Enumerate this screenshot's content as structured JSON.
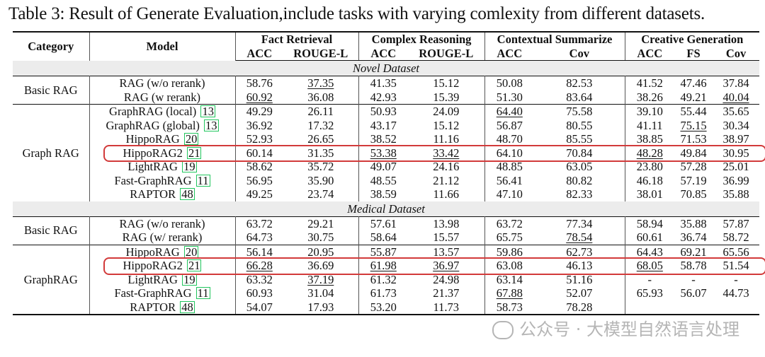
{
  "caption": "Table 3: Result of Generate Evaluation,include tasks with varying comlexity from different datasets.",
  "header": {
    "category": "Category",
    "model": "Model",
    "groups": [
      "Fact Retrieval",
      "Complex Reasoning",
      "Contextual Summarize",
      "Creative Generation"
    ],
    "metrics": [
      "ACC",
      "ROUGE-L",
      "ACC",
      "ROUGE-L",
      "ACC",
      "Cov",
      "ACC",
      "FS",
      "Cov"
    ]
  },
  "sections": [
    {
      "title": "Novel Dataset",
      "groups": [
        {
          "category": "Basic RAG",
          "rows": [
            {
              "model": "RAG (w/o rerank)",
              "cite": "",
              "values": [
                "58.76",
                "37.35",
                "41.35",
                "15.12",
                "50.08",
                "82.53",
                "41.52",
                "47.46",
                "37.84"
              ],
              "underline": [
                1
              ]
            },
            {
              "model": "RAG (w rerank)",
              "cite": "",
              "values": [
                "60.92",
                "36.08",
                "42.93",
                "15.39",
                "51.30",
                "83.64",
                "38.26",
                "49.21",
                "40.04"
              ],
              "underline": [
                0,
                8
              ]
            }
          ]
        },
        {
          "category": "Graph RAG",
          "rows": [
            {
              "model": "GraphRAG (local)",
              "cite": "13",
              "values": [
                "49.29",
                "26.11",
                "50.93",
                "24.09",
                "64.40",
                "75.58",
                "39.10",
                "55.44",
                "35.65"
              ],
              "underline": [
                4
              ]
            },
            {
              "model": "GraphRAG (global)",
              "cite": "13",
              "values": [
                "36.92",
                "17.32",
                "43.17",
                "15.12",
                "56.87",
                "80.55",
                "41.11",
                "75.15",
                "30.34"
              ],
              "underline": [
                7
              ]
            },
            {
              "model": "HippoRAG",
              "cite": "20",
              "values": [
                "52.93",
                "26.65",
                "38.52",
                "11.16",
                "48.70",
                "85.55",
                "38.85",
                "71.53",
                "38.97"
              ],
              "underline": []
            },
            {
              "model": "HippoRAG2",
              "cite": "21",
              "values": [
                "60.14",
                "31.35",
                "53.38",
                "33.42",
                "64.10",
                "70.84",
                "48.28",
                "49.84",
                "30.95"
              ],
              "underline": [
                2,
                3,
                6
              ],
              "highlight": true
            },
            {
              "model": "LightRAG",
              "cite": "19",
              "values": [
                "58.62",
                "35.72",
                "49.07",
                "24.16",
                "48.85",
                "63.05",
                "23.80",
                "57.28",
                "25.01"
              ],
              "underline": []
            },
            {
              "model": "Fast-GraphRAG",
              "cite": "11",
              "values": [
                "56.95",
                "35.90",
                "48.55",
                "21.12",
                "56.41",
                "80.82",
                "46.18",
                "57.19",
                "36.99"
              ],
              "underline": []
            },
            {
              "model": "RAPTOR",
              "cite": "48",
              "values": [
                "49.25",
                "23.74",
                "38.59",
                "11.66",
                "47.10",
                "82.33",
                "38.01",
                "70.85",
                "35.88"
              ],
              "underline": []
            }
          ]
        }
      ]
    },
    {
      "title": "Medical Dataset",
      "groups": [
        {
          "category": "Basic RAG",
          "rows": [
            {
              "model": "RAG (w/o rerank)",
              "cite": "",
              "values": [
                "63.72",
                "29.21",
                "57.61",
                "13.98",
                "63.72",
                "77.34",
                "58.94",
                "35.88",
                "57.87"
              ],
              "underline": []
            },
            {
              "model": "RAG (w/ rerank)",
              "cite": "",
              "values": [
                "64.73",
                "30.75",
                "58.64",
                "15.57",
                "65.75",
                "78.54",
                "60.61",
                "36.74",
                "58.72"
              ],
              "underline": [
                5
              ]
            }
          ]
        },
        {
          "category": "GraphRAG",
          "rows": [
            {
              "model": "HippoRAG",
              "cite": "20",
              "values": [
                "56.14",
                "20.95",
                "55.87",
                "13.57",
                "59.86",
                "62.73",
                "64.43",
                "69.21",
                "65.56"
              ],
              "underline": []
            },
            {
              "model": "HippoRAG2",
              "cite": "21",
              "values": [
                "66.28",
                "36.69",
                "61.98",
                "36.97",
                "63.08",
                "46.13",
                "68.05",
                "58.78",
                "51.54"
              ],
              "underline": [
                0,
                2,
                3,
                6
              ],
              "highlight": true
            },
            {
              "model": "LightRAG",
              "cite": "19",
              "values": [
                "63.32",
                "37.19",
                "61.32",
                "24.98",
                "63.14",
                "51.16",
                "-",
                "-",
                "-"
              ],
              "underline": [
                1
              ]
            },
            {
              "model": "Fast-GraphRAG",
              "cite": "11",
              "values": [
                "60.93",
                "31.04",
                "61.73",
                "21.37",
                "67.88",
                "52.07",
                "65.93",
                "56.07",
                "44.73"
              ],
              "underline": [
                4
              ]
            },
            {
              "model": "RAPTOR",
              "cite": "48",
              "values": [
                "54.07",
                "17.93",
                "53.20",
                "11.73",
                "58.73",
                "78.28",
                "",
                "",
                ""
              ],
              "underline": []
            }
          ]
        }
      ]
    }
  ],
  "watermark": "公众号 · 大模型自然语言处理",
  "colors": {
    "highlight": "#d23a3a",
    "cite_box": "#22c55e",
    "section_bg": "#ececec"
  }
}
